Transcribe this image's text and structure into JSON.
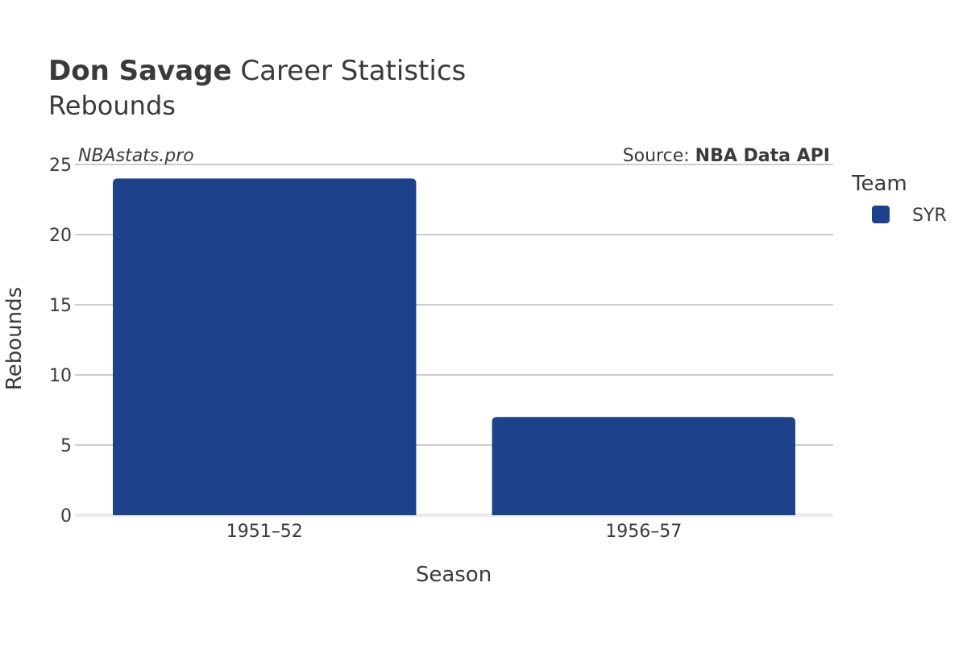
{
  "header": {
    "player_name": "Don Savage",
    "title_suffix": "Career Statistics",
    "subtitle": "Rebounds"
  },
  "watermark": "NBAstats.pro",
  "source": {
    "prefix": "Source: ",
    "name": "NBA Data API"
  },
  "legend": {
    "title": "Team",
    "items": [
      {
        "label": "SYR",
        "color": "#1d428a"
      }
    ]
  },
  "chart_data": {
    "type": "bar",
    "title": "Don Savage Career Statistics",
    "subtitle": "Rebounds",
    "xlabel": "Season",
    "ylabel": "Rebounds",
    "categories": [
      "1951–52",
      "1956–57"
    ],
    "series": [
      {
        "name": "SYR",
        "values": [
          24,
          7
        ],
        "color": "#1d428a"
      }
    ],
    "ylim": [
      0,
      25
    ],
    "yticks": [
      0,
      5,
      10,
      15,
      20,
      25
    ],
    "grid": true,
    "legend_position": "right"
  }
}
